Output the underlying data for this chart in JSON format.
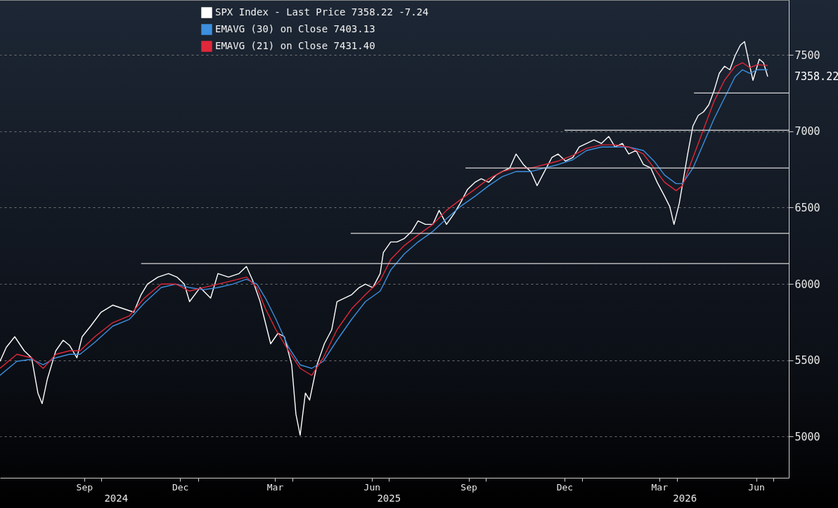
{
  "chart_data": {
    "type": "line",
    "series": [
      {
        "name": "SPX Index - Last Price 7358.22   -7.24",
        "color": "#ffffff",
        "x": [
          "2024-06-27",
          "2024-07-03",
          "2024-07-11",
          "2024-07-20",
          "2024-07-27",
          "2024-08-02",
          "2024-08-06",
          "2024-08-11",
          "2024-08-19",
          "2024-08-26",
          "2024-09-01",
          "2024-09-08",
          "2024-09-13",
          "2024-09-21",
          "2024-10-01",
          "2024-10-12",
          "2024-10-22",
          "2024-11-01",
          "2024-11-08",
          "2024-11-14",
          "2024-11-24",
          "2024-12-04",
          "2024-12-12",
          "2024-12-19",
          "2024-12-24",
          "2025-01-03",
          "2025-01-13",
          "2025-01-20",
          "2025-01-30",
          "2025-02-09",
          "2025-02-16",
          "2025-02-22",
          "2025-03-01",
          "2025-03-06",
          "2025-03-11",
          "2025-03-18",
          "2025-03-24",
          "2025-03-31",
          "2025-04-04",
          "2025-04-08",
          "2025-04-13",
          "2025-04-17",
          "2025-04-24",
          "2025-05-01",
          "2025-05-08",
          "2025-05-13",
          "2025-05-20",
          "2025-05-27",
          "2025-06-03",
          "2025-06-09",
          "2025-06-16",
          "2025-06-23",
          "2025-06-26",
          "2025-07-03",
          "2025-07-09",
          "2025-07-16",
          "2025-07-23",
          "2025-07-29",
          "2025-08-05",
          "2025-08-12",
          "2025-08-18",
          "2025-08-25",
          "2025-09-01",
          "2025-09-07",
          "2025-09-14",
          "2025-09-21",
          "2025-09-27",
          "2025-10-04",
          "2025-10-11",
          "2025-10-17",
          "2025-10-24",
          "2025-10-30",
          "2025-11-06",
          "2025-11-13",
          "2025-11-19",
          "2025-11-26",
          "2025-12-03",
          "2025-12-09",
          "2025-12-16",
          "2025-12-23",
          "2025-12-29",
          "2026-01-05",
          "2026-01-12",
          "2026-01-19",
          "2026-01-26",
          "2026-02-01",
          "2026-02-08",
          "2026-02-14",
          "2026-02-21",
          "2026-02-28",
          "2026-03-07",
          "2026-03-13",
          "2026-03-20",
          "2026-03-25",
          "2026-03-29",
          "2026-04-03",
          "2026-04-07",
          "2026-04-11",
          "2026-04-16",
          "2026-04-21",
          "2026-04-26",
          "2026-05-01",
          "2026-05-06",
          "2026-05-11",
          "2026-05-16",
          "2026-05-21",
          "2026-05-26",
          "2026-05-31",
          "2026-06-04",
          "2026-06-09",
          "2026-06-12",
          "2026-06-18",
          "2026-06-22",
          "2026-06-26"
        ],
        "values": [
          5493,
          5585,
          5654,
          5562,
          5516,
          5285,
          5216,
          5378,
          5562,
          5631,
          5598,
          5516,
          5654,
          5723,
          5815,
          5861,
          5838,
          5815,
          5930,
          5999,
          6045,
          6068,
          6045,
          5999,
          5884,
          5976,
          5907,
          6068,
          6045,
          6068,
          6114,
          6022,
          5884,
          5746,
          5608,
          5677,
          5654,
          5470,
          5147,
          5009,
          5285,
          5239,
          5470,
          5608,
          5700,
          5884,
          5907,
          5930,
          5976,
          5999,
          5976,
          6068,
          6206,
          6275,
          6275,
          6298,
          6344,
          6413,
          6390,
          6390,
          6482,
          6390,
          6459,
          6528,
          6620,
          6666,
          6689,
          6666,
          6713,
          6736,
          6759,
          6851,
          6782,
          6736,
          6644,
          6736,
          6828,
          6851,
          6805,
          6828,
          6897,
          6920,
          6943,
          6920,
          6966,
          6897,
          6920,
          6851,
          6874,
          6782,
          6759,
          6666,
          6575,
          6506,
          6390,
          6528,
          6689,
          6851,
          7035,
          7104,
          7127,
          7173,
          7265,
          7380,
          7426,
          7403,
          7495,
          7564,
          7587,
          7426,
          7334,
          7472,
          7449,
          7358.22
        ]
      },
      {
        "name": "EMAVG (30)  on Close  7403.13",
        "color": "#3d8fe0",
        "x": [
          "2024-06-27",
          "2024-07-13",
          "2024-07-27",
          "2024-08-07",
          "2024-08-19",
          "2024-09-01",
          "2024-09-11",
          "2024-09-25",
          "2024-10-12",
          "2024-10-28",
          "2024-11-11",
          "2024-11-27",
          "2024-12-11",
          "2024-12-24",
          "2025-01-06",
          "2025-01-20",
          "2025-02-03",
          "2025-02-16",
          "2025-02-26",
          "2025-03-06",
          "2025-03-16",
          "2025-03-28",
          "2025-04-08",
          "2025-04-19",
          "2025-04-30",
          "2025-05-13",
          "2025-05-27",
          "2025-06-09",
          "2025-06-23",
          "2025-07-03",
          "2025-07-16",
          "2025-07-29",
          "2025-08-12",
          "2025-08-25",
          "2025-09-07",
          "2025-09-21",
          "2025-10-04",
          "2025-10-17",
          "2025-10-30",
          "2025-11-13",
          "2025-11-26",
          "2025-12-09",
          "2025-12-23",
          "2026-01-05",
          "2026-01-19",
          "2026-02-01",
          "2026-02-14",
          "2026-02-28",
          "2026-03-10",
          "2026-03-20",
          "2026-03-31",
          "2026-04-06",
          "2026-04-16",
          "2026-04-26",
          "2026-05-06",
          "2026-05-16",
          "2026-05-26",
          "2026-06-02",
          "2026-06-09",
          "2026-06-16",
          "2026-06-26"
        ],
        "values": [
          5401,
          5493,
          5507,
          5470,
          5516,
          5539,
          5539,
          5617,
          5723,
          5769,
          5875,
          5976,
          5999,
          5976,
          5962,
          5976,
          5999,
          6031,
          5999,
          5907,
          5769,
          5585,
          5470,
          5447,
          5493,
          5631,
          5769,
          5884,
          5953,
          6091,
          6197,
          6275,
          6344,
          6427,
          6506,
          6574,
          6643,
          6703,
          6736,
          6736,
          6759,
          6782,
          6814,
          6874,
          6897,
          6897,
          6897,
          6874,
          6805,
          6713,
          6657,
          6657,
          6759,
          6920,
          7081,
          7219,
          7357,
          7403,
          7380,
          7403,
          7403.13
        ]
      },
      {
        "name": "EMAVG (21)  on Close  7431.40",
        "color": "#e0283a",
        "x": [
          "2024-06-27",
          "2024-07-13",
          "2024-07-27",
          "2024-08-07",
          "2024-08-19",
          "2024-09-01",
          "2024-09-11",
          "2024-09-25",
          "2024-10-12",
          "2024-10-28",
          "2024-11-11",
          "2024-11-27",
          "2024-12-11",
          "2024-12-24",
          "2025-01-06",
          "2025-01-20",
          "2025-02-03",
          "2025-02-16",
          "2025-02-26",
          "2025-03-06",
          "2025-03-16",
          "2025-03-28",
          "2025-04-08",
          "2025-04-19",
          "2025-04-30",
          "2025-05-13",
          "2025-05-27",
          "2025-06-09",
          "2025-06-23",
          "2025-07-03",
          "2025-07-16",
          "2025-07-29",
          "2025-08-12",
          "2025-08-25",
          "2025-09-07",
          "2025-09-21",
          "2025-10-04",
          "2025-10-17",
          "2025-10-30",
          "2025-11-13",
          "2025-11-26",
          "2025-12-09",
          "2025-12-23",
          "2026-01-05",
          "2026-01-19",
          "2026-02-01",
          "2026-02-14",
          "2026-02-28",
          "2026-03-10",
          "2026-03-20",
          "2026-03-31",
          "2026-04-06",
          "2026-04-16",
          "2026-04-26",
          "2026-05-06",
          "2026-05-16",
          "2026-05-26",
          "2026-06-02",
          "2026-06-09",
          "2026-06-16",
          "2026-06-26"
        ],
        "values": [
          5447,
          5539,
          5516,
          5447,
          5539,
          5562,
          5562,
          5654,
          5746,
          5792,
          5907,
          5999,
          5999,
          5953,
          5976,
          5999,
          6022,
          6045,
          5976,
          5838,
          5700,
          5562,
          5447,
          5401,
          5516,
          5700,
          5838,
          5930,
          6022,
          6160,
          6252,
          6321,
          6390,
          6482,
          6551,
          6620,
          6689,
          6736,
          6759,
          6759,
          6782,
          6805,
          6842,
          6888,
          6911,
          6911,
          6897,
          6851,
          6759,
          6666,
          6611,
          6643,
          6828,
          7012,
          7196,
          7334,
          7426,
          7449,
          7417,
          7436,
          7431.4
        ]
      },
      {
        "color": "#d9d9d9",
        "x": [
          "2024-11-08",
          "2026-07-16"
        ],
        "values": [
          6133,
          6133
        ]
      },
      {
        "color": "#d9d9d9",
        "x": [
          "2025-05-26",
          "2026-07-16"
        ],
        "values": [
          6331,
          6331
        ]
      },
      {
        "color": "#d9d9d9",
        "x": [
          "2025-09-12",
          "2026-07-16"
        ],
        "values": [
          6759,
          6759
        ]
      },
      {
        "color": "#d9d9d9",
        "x": [
          "2025-12-15",
          "2026-07-16"
        ],
        "values": [
          7007,
          7007
        ]
      },
      {
        "color": "#d9d9d9",
        "x": [
          "2026-04-17",
          "2026-07-16"
        ],
        "values": [
          7251,
          7251
        ]
      }
    ],
    "xlim": [
      "2024-06-27",
      "2026-07-16"
    ],
    "xticks": [
      {
        "value": "2024-09-15",
        "label": "Sep"
      },
      {
        "value": "2024-10-01",
        "label": null
      },
      {
        "value": "2024-12-15",
        "label": "Dec"
      },
      {
        "value": "2025-01-01",
        "label": null
      },
      {
        "value": "2025-03-15",
        "label": "Mar"
      },
      {
        "value": "2025-04-01",
        "label": null
      },
      {
        "value": "2025-06-15",
        "label": "Jun"
      },
      {
        "value": "2025-07-01",
        "label": null
      },
      {
        "value": "2025-09-15",
        "label": "Sep"
      },
      {
        "value": "2025-10-01",
        "label": null
      },
      {
        "value": "2025-12-15",
        "label": "Dec"
      },
      {
        "value": "2026-01-01",
        "label": null
      },
      {
        "value": "2026-03-15",
        "label": "Mar"
      },
      {
        "value": "2026-04-01",
        "label": null
      },
      {
        "value": "2026-06-15",
        "label": "Jun"
      },
      {
        "value": "2026-07-01",
        "label": null
      }
    ],
    "ylim": [
      4730,
      7860
    ],
    "yticks": [
      5000,
      5500,
      6000,
      6500,
      7000,
      7500
    ],
    "grid": true,
    "legend": "top",
    "x2lim": [
      "2024-06-27",
      "2026-07-16"
    ],
    "x2ticks": [
      {
        "value": "2024-10-15",
        "label": "2024"
      },
      {
        "value": "2025-07-01",
        "label": "2025"
      },
      {
        "value": "2026-04-08",
        "label": "2026"
      }
    ],
    "annotations": [
      {
        "text": "7358.22",
        "x": "2026-06-26",
        "y": 7358.22
      }
    ]
  }
}
